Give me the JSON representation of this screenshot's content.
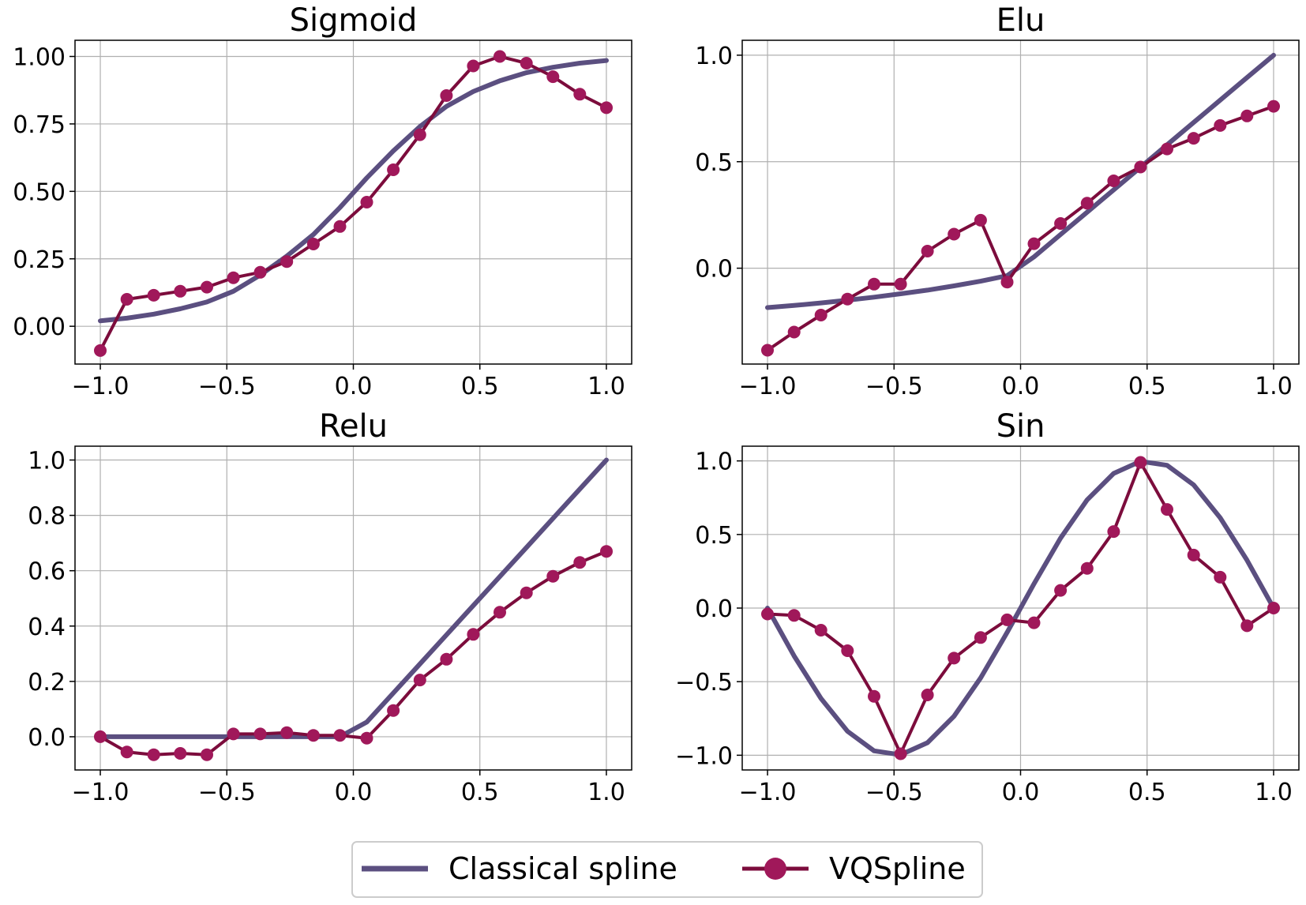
{
  "colors": {
    "classical": "#5b4f80",
    "vq_line": "#7c0c3c",
    "vq_marker": "#a0185a",
    "grid": "#b0b0b0",
    "axes": "#000000"
  },
  "legend": {
    "classical_label": "Classical spline",
    "vq_label": "VQSpline",
    "placement": "bottom-center"
  },
  "chart_data": [
    {
      "type": "line",
      "title": "Sigmoid",
      "xlim": [
        -1.1,
        1.1
      ],
      "ylim": [
        -0.14,
        1.06
      ],
      "xticks": [
        -1.0,
        -0.5,
        0.0,
        0.5,
        1.0
      ],
      "xtick_labels": [
        "−1.0",
        "−0.5",
        "0.0",
        "0.5",
        "1.0"
      ],
      "yticks": [
        0.0,
        0.25,
        0.5,
        0.75,
        1.0
      ],
      "ytick_labels": [
        "0.00",
        "0.25",
        "0.50",
        "0.75",
        "1.00"
      ],
      "grid": true,
      "x": [
        -1.0,
        -0.895,
        -0.789,
        -0.684,
        -0.579,
        -0.474,
        -0.368,
        -0.263,
        -0.158,
        -0.053,
        0.053,
        0.158,
        0.263,
        0.368,
        0.474,
        0.579,
        0.684,
        0.789,
        0.895,
        1.0
      ],
      "series": [
        {
          "name": "Classical spline",
          "values": [
            0.02,
            0.03,
            0.045,
            0.065,
            0.09,
            0.13,
            0.19,
            0.26,
            0.34,
            0.44,
            0.55,
            0.65,
            0.74,
            0.815,
            0.87,
            0.91,
            0.94,
            0.96,
            0.975,
            0.985
          ]
        },
        {
          "name": "VQSpline",
          "values": [
            -0.09,
            0.1,
            0.115,
            0.13,
            0.145,
            0.18,
            0.2,
            0.24,
            0.305,
            0.37,
            0.46,
            0.58,
            0.71,
            0.855,
            0.965,
            1.0,
            0.975,
            0.925,
            0.86,
            0.81
          ]
        }
      ]
    },
    {
      "type": "line",
      "title": "Elu",
      "xlim": [
        -1.1,
        1.1
      ],
      "ylim": [
        -0.45,
        1.07
      ],
      "xticks": [
        -1.0,
        -0.5,
        0.0,
        0.5,
        1.0
      ],
      "xtick_labels": [
        "−1.0",
        "−0.5",
        "0.0",
        "0.5",
        "1.0"
      ],
      "yticks": [
        0.0,
        0.5,
        1.0
      ],
      "ytick_labels": [
        "0.0",
        "0.5",
        "1.0"
      ],
      "grid": true,
      "x": [
        -1.0,
        -0.895,
        -0.789,
        -0.684,
        -0.579,
        -0.474,
        -0.368,
        -0.263,
        -0.158,
        -0.053,
        0.053,
        0.158,
        0.263,
        0.368,
        0.474,
        0.579,
        0.684,
        0.789,
        0.895,
        1.0
      ],
      "series": [
        {
          "name": "Classical spline",
          "values": [
            -0.185,
            -0.175,
            -0.163,
            -0.15,
            -0.136,
            -0.12,
            -0.103,
            -0.083,
            -0.061,
            -0.035,
            0.053,
            0.158,
            0.263,
            0.368,
            0.474,
            0.579,
            0.684,
            0.789,
            0.895,
            1.0
          ]
        },
        {
          "name": "VQSpline",
          "values": [
            -0.385,
            -0.3,
            -0.22,
            -0.145,
            -0.075,
            -0.075,
            0.08,
            0.16,
            0.225,
            -0.065,
            0.115,
            0.21,
            0.305,
            0.41,
            0.475,
            0.56,
            0.61,
            0.67,
            0.715,
            0.76
          ]
        }
      ]
    },
    {
      "type": "line",
      "title": "Relu",
      "xlim": [
        -1.1,
        1.1
      ],
      "ylim": [
        -0.12,
        1.05
      ],
      "xticks": [
        -1.0,
        -0.5,
        0.0,
        0.5,
        1.0
      ],
      "xtick_labels": [
        "−1.0",
        "−0.5",
        "0.0",
        "0.5",
        "1.0"
      ],
      "yticks": [
        0.0,
        0.2,
        0.4,
        0.6,
        0.8,
        1.0
      ],
      "ytick_labels": [
        "0.0",
        "0.2",
        "0.4",
        "0.6",
        "0.8",
        "1.0"
      ],
      "grid": true,
      "x": [
        -1.0,
        -0.895,
        -0.789,
        -0.684,
        -0.579,
        -0.474,
        -0.368,
        -0.263,
        -0.158,
        -0.053,
        0.053,
        0.158,
        0.263,
        0.368,
        0.474,
        0.579,
        0.684,
        0.789,
        0.895,
        1.0
      ],
      "series": [
        {
          "name": "Classical spline",
          "values": [
            0.0,
            0.0,
            0.0,
            0.0,
            0.0,
            0.0,
            0.0,
            0.0,
            0.0,
            0.0,
            0.053,
            0.158,
            0.263,
            0.368,
            0.474,
            0.579,
            0.684,
            0.789,
            0.895,
            1.0
          ]
        },
        {
          "name": "VQSpline",
          "values": [
            0.0,
            -0.055,
            -0.065,
            -0.06,
            -0.065,
            0.01,
            0.01,
            0.015,
            0.005,
            0.005,
            -0.005,
            0.095,
            0.205,
            0.28,
            0.37,
            0.45,
            0.52,
            0.58,
            0.63,
            0.67
          ]
        }
      ]
    },
    {
      "type": "line",
      "title": "Sin",
      "xlim": [
        -1.1,
        1.1
      ],
      "ylim": [
        -1.1,
        1.1
      ],
      "xticks": [
        -1.0,
        -0.5,
        0.0,
        0.5,
        1.0
      ],
      "xtick_labels": [
        "−1.0",
        "−0.5",
        "0.0",
        "0.5",
        "1.0"
      ],
      "yticks": [
        -1.0,
        -0.5,
        0.0,
        0.5,
        1.0
      ],
      "ytick_labels": [
        "−1.0",
        "−0.5",
        "0.0",
        "0.5",
        "1.0"
      ],
      "grid": true,
      "x": [
        -1.0,
        -0.895,
        -0.789,
        -0.684,
        -0.579,
        -0.474,
        -0.368,
        -0.263,
        -0.158,
        -0.053,
        0.053,
        0.158,
        0.263,
        0.368,
        0.474,
        0.579,
        0.684,
        0.789,
        0.895,
        1.0
      ],
      "series": [
        {
          "name": "Classical spline",
          "values": [
            0.0,
            -0.325,
            -0.614,
            -0.837,
            -0.97,
            -0.997,
            -0.915,
            -0.735,
            -0.475,
            -0.165,
            0.165,
            0.475,
            0.735,
            0.915,
            0.997,
            0.97,
            0.837,
            0.614,
            0.325,
            0.0
          ]
        },
        {
          "name": "VQSpline",
          "values": [
            -0.04,
            -0.05,
            -0.15,
            -0.29,
            -0.6,
            -0.99,
            -0.59,
            -0.34,
            -0.2,
            -0.08,
            -0.1,
            0.12,
            0.27,
            0.52,
            0.99,
            0.67,
            0.36,
            0.21,
            -0.12,
            0.0
          ]
        }
      ]
    }
  ]
}
